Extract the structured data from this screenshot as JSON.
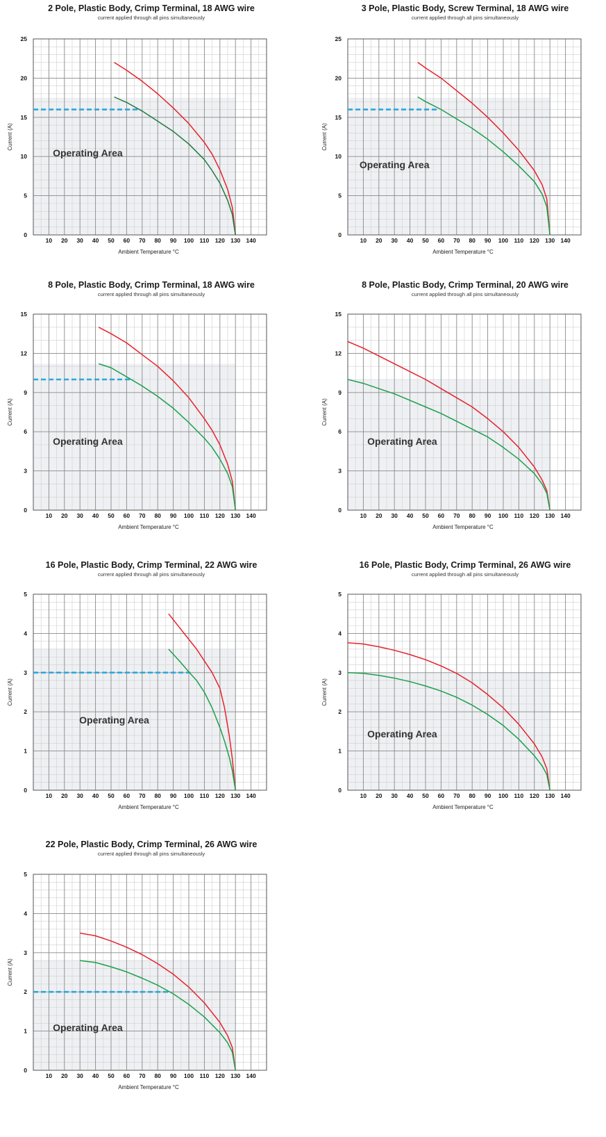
{
  "chart_data": [
    {
      "type": "line",
      "title": "2 Pole, Plastic Body, Crimp Terminal, 18 AWG wire",
      "subtitle": "current applied through all pins simultaneously",
      "xlabel": "Ambient Temperature °C",
      "ylabel": "Current (A)",
      "xlim": [
        0,
        150
      ],
      "ylim": [
        0,
        25
      ],
      "xticks": [
        10,
        20,
        30,
        40,
        50,
        60,
        70,
        80,
        90,
        100,
        110,
        120,
        130,
        140
      ],
      "yticks": [
        0,
        5,
        10,
        15,
        20,
        25
      ],
      "y_minor_step": 1,
      "operating_area_label": "Operating Area",
      "operating_area_top": 17.5,
      "dashed_level": 16,
      "dashed_end_x": 68,
      "series": [
        {
          "color": "#e8202a",
          "x": [
            52,
            60,
            70,
            80,
            90,
            100,
            110,
            115,
            120,
            125,
            128,
            130
          ],
          "y": [
            22,
            21,
            19.6,
            18,
            16.2,
            14.2,
            11.8,
            10.3,
            8.3,
            5.8,
            3.5,
            0
          ]
        },
        {
          "color": "#1f7a3d",
          "x": [
            52,
            60,
            70,
            80,
            90,
            100,
            110,
            115,
            120,
            125,
            128,
            130
          ],
          "y": [
            17.6,
            16.9,
            15.8,
            14.5,
            13.2,
            11.6,
            9.6,
            8.2,
            6.6,
            4.4,
            2.6,
            0
          ]
        }
      ]
    },
    {
      "type": "line",
      "title": "3 Pole, Plastic Body, Screw Terminal, 18 AWG wire",
      "subtitle": "current applied through all pins simultaneously",
      "xlabel": "Ambient Temperature °C",
      "ylabel": "Current (A)",
      "xlim": [
        0,
        150
      ],
      "ylim": [
        0,
        25
      ],
      "xticks": [
        10,
        20,
        30,
        40,
        50,
        60,
        70,
        80,
        90,
        100,
        110,
        120,
        130,
        140
      ],
      "yticks": [
        0,
        5,
        10,
        15,
        20,
        25
      ],
      "y_minor_step": 1,
      "operating_area_label": "Operating Area",
      "operating_area_top": 17.5,
      "dashed_level": 16,
      "dashed_end_x": 58,
      "series": [
        {
          "color": "#e8202a",
          "x": [
            45,
            50,
            60,
            70,
            80,
            90,
            100,
            110,
            120,
            125,
            128,
            130
          ],
          "y": [
            22,
            21.3,
            20,
            18.4,
            16.8,
            15,
            13,
            10.8,
            8.2,
            6.4,
            4.6,
            0
          ]
        },
        {
          "color": "#1aa04a",
          "x": [
            45,
            50,
            60,
            70,
            80,
            90,
            100,
            110,
            120,
            125,
            128,
            130
          ],
          "y": [
            17.6,
            17,
            16,
            14.8,
            13.6,
            12.2,
            10.6,
            8.8,
            6.8,
            5.2,
            3.6,
            0
          ]
        }
      ]
    },
    {
      "type": "line",
      "title": "8 Pole, Plastic Body, Crimp Terminal, 18 AWG wire",
      "subtitle": "current applied through all pins simultaneously",
      "xlabel": "Ambient Temperature °C",
      "ylabel": "Current (A)",
      "xlim": [
        0,
        150
      ],
      "ylim": [
        0,
        15
      ],
      "xticks": [
        10,
        20,
        30,
        40,
        50,
        60,
        70,
        80,
        90,
        100,
        110,
        120,
        130,
        140
      ],
      "yticks": [
        0,
        3,
        6,
        9,
        12,
        15
      ],
      "y_minor_step": 1,
      "operating_area_label": "Operating Area",
      "operating_area_top": 11.2,
      "dashed_level": 10,
      "dashed_end_x": 64,
      "series": [
        {
          "color": "#e8202a",
          "x": [
            42,
            50,
            60,
            70,
            80,
            90,
            100,
            110,
            115,
            120,
            125,
            128,
            130
          ],
          "y": [
            14,
            13.5,
            12.8,
            11.9,
            11,
            9.9,
            8.6,
            7,
            6.1,
            5,
            3.5,
            2.2,
            0
          ]
        },
        {
          "color": "#1aa04a",
          "x": [
            42,
            50,
            60,
            70,
            80,
            90,
            100,
            110,
            115,
            120,
            125,
            128,
            130
          ],
          "y": [
            11.2,
            10.9,
            10.2,
            9.5,
            8.7,
            7.8,
            6.7,
            5.5,
            4.8,
            3.9,
            2.8,
            1.8,
            0
          ]
        }
      ]
    },
    {
      "type": "line",
      "title": "8 Pole, Plastic Body, Crimp Terminal, 20 AWG wire",
      "subtitle": "current applied through all pins simultaneously",
      "xlabel": "Ambient Temperature °C",
      "ylabel": "Current (A)",
      "xlim": [
        0,
        150
      ],
      "ylim": [
        0,
        15
      ],
      "xticks": [
        10,
        20,
        30,
        40,
        50,
        60,
        70,
        80,
        90,
        100,
        110,
        120,
        130,
        140
      ],
      "yticks": [
        0,
        3,
        6,
        9,
        12,
        15
      ],
      "y_minor_step": 1,
      "operating_area_label": "Operating Area",
      "operating_area_top": 10,
      "dashed_level": null,
      "dashed_end_x": null,
      "series": [
        {
          "color": "#e8202a",
          "x": [
            0,
            10,
            20,
            30,
            40,
            50,
            60,
            70,
            80,
            90,
            100,
            110,
            120,
            125,
            128,
            130
          ],
          "y": [
            12.9,
            12.4,
            11.8,
            11.2,
            10.6,
            10,
            9.3,
            8.6,
            7.9,
            7,
            6,
            4.8,
            3.3,
            2.3,
            1.5,
            0
          ]
        },
        {
          "color": "#1aa04a",
          "x": [
            0,
            10,
            20,
            30,
            40,
            50,
            60,
            70,
            80,
            90,
            100,
            110,
            120,
            125,
            128,
            130
          ],
          "y": [
            10,
            9.7,
            9.3,
            8.9,
            8.4,
            7.9,
            7.4,
            6.8,
            6.2,
            5.6,
            4.8,
            3.9,
            2.8,
            2,
            1.3,
            0
          ]
        }
      ]
    },
    {
      "type": "line",
      "title": "16 Pole, Plastic Body, Crimp Terminal, 22 AWG wire",
      "subtitle": "current applied through all pins simultaneously",
      "xlabel": "Ambient Temperature °C",
      "ylabel": "Current (A)",
      "xlim": [
        0,
        150
      ],
      "ylim": [
        0,
        5
      ],
      "xticks": [
        10,
        20,
        30,
        40,
        50,
        60,
        70,
        80,
        90,
        100,
        110,
        120,
        130,
        140
      ],
      "yticks": [
        0,
        1,
        2,
        3,
        4,
        5
      ],
      "y_minor_step": 0.2,
      "operating_area_label": "Operating Area",
      "operating_area_top": 3.6,
      "dashed_level": 3,
      "dashed_end_x": 101,
      "series": [
        {
          "color": "#e8202a",
          "x": [
            87,
            95,
            100,
            105,
            110,
            115,
            120,
            123,
            126,
            128,
            130
          ],
          "y": [
            4.5,
            4.1,
            3.85,
            3.6,
            3.3,
            3,
            2.6,
            2.1,
            1.4,
            0.8,
            0
          ]
        },
        {
          "color": "#1aa04a",
          "x": [
            87,
            95,
            100,
            105,
            110,
            115,
            120,
            123,
            126,
            128,
            130
          ],
          "y": [
            3.6,
            3.25,
            3.02,
            2.8,
            2.5,
            2.1,
            1.6,
            1.25,
            0.85,
            0.5,
            0
          ]
        }
      ]
    },
    {
      "type": "line",
      "title": "16 Pole, Plastic Body, Crimp Terminal, 26 AWG wire",
      "subtitle": "current applied through all pins simultaneously",
      "xlabel": "Ambient Temperature °C",
      "ylabel": "Current (A)",
      "xlim": [
        0,
        150
      ],
      "ylim": [
        0,
        5
      ],
      "xticks": [
        10,
        20,
        30,
        40,
        50,
        60,
        70,
        80,
        90,
        100,
        110,
        120,
        130,
        140
      ],
      "yticks": [
        0,
        1,
        2,
        3,
        4,
        5
      ],
      "y_minor_step": 0.2,
      "operating_area_label": "Operating Area",
      "operating_area_top": 3,
      "dashed_level": null,
      "dashed_end_x": null,
      "series": [
        {
          "color": "#e8202a",
          "x": [
            0,
            10,
            20,
            30,
            40,
            50,
            60,
            70,
            80,
            90,
            100,
            110,
            120,
            125,
            128,
            130
          ],
          "y": [
            3.76,
            3.73,
            3.66,
            3.57,
            3.46,
            3.33,
            3.17,
            2.98,
            2.74,
            2.44,
            2.1,
            1.68,
            1.18,
            0.85,
            0.55,
            0
          ]
        },
        {
          "color": "#1aa04a",
          "x": [
            0,
            10,
            20,
            30,
            40,
            50,
            60,
            70,
            80,
            90,
            100,
            110,
            120,
            125,
            128,
            130
          ],
          "y": [
            3,
            2.98,
            2.93,
            2.86,
            2.77,
            2.66,
            2.53,
            2.37,
            2.17,
            1.93,
            1.65,
            1.3,
            0.88,
            0.62,
            0.4,
            0
          ]
        }
      ]
    },
    {
      "type": "line",
      "title": "22 Pole, Plastic Body, Crimp Terminal, 26 AWG wire",
      "subtitle": "current applied through all pins simultaneously",
      "xlabel": "Ambient Temperature °C",
      "ylabel": "Current (A)",
      "xlim": [
        0,
        150
      ],
      "ylim": [
        0,
        5
      ],
      "xticks": [
        10,
        20,
        30,
        40,
        50,
        60,
        70,
        80,
        90,
        100,
        110,
        120,
        130,
        140
      ],
      "yticks": [
        0,
        1,
        2,
        3,
        4,
        5
      ],
      "y_minor_step": 0.2,
      "operating_area_label": "Operating Area",
      "operating_area_top": 2.8,
      "dashed_level": 2,
      "dashed_end_x": 88,
      "series": [
        {
          "color": "#e8202a",
          "x": [
            30,
            40,
            50,
            60,
            70,
            80,
            90,
            100,
            110,
            120,
            125,
            128,
            130
          ],
          "y": [
            3.5,
            3.43,
            3.3,
            3.14,
            2.95,
            2.72,
            2.45,
            2.12,
            1.72,
            1.22,
            0.88,
            0.58,
            0
          ]
        },
        {
          "color": "#1aa04a",
          "x": [
            30,
            40,
            50,
            60,
            70,
            80,
            90,
            100,
            110,
            120,
            125,
            128,
            130
          ],
          "y": [
            2.8,
            2.75,
            2.64,
            2.51,
            2.35,
            2.17,
            1.95,
            1.68,
            1.36,
            0.96,
            0.7,
            0.46,
            0
          ]
        }
      ]
    }
  ],
  "colors": {
    "dashed_line": "#2aa8dc",
    "operating_area_fill": "#eef0f3",
    "grid_major": "#8c8c8c",
    "grid_minor": "#cfcfcf"
  }
}
